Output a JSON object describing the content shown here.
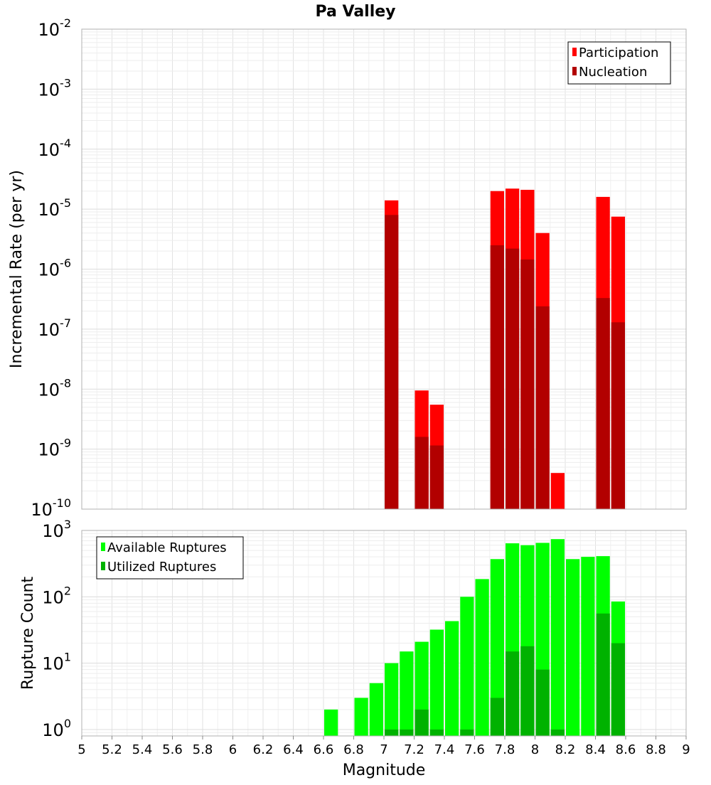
{
  "title": "Pa Valley",
  "xlabel": "Magnitude",
  "x_ticks": [
    "5",
    "5.2",
    "5.4",
    "5.6",
    "5.8",
    "6",
    "6.2",
    "6.4",
    "6.6",
    "6.8",
    "7",
    "7.2",
    "7.4",
    "7.6",
    "7.8",
    "8",
    "8.2",
    "8.4",
    "8.6",
    "8.8",
    "9"
  ],
  "chart_data": [
    {
      "type": "bar",
      "ylabel": "Incremental Rate (per yr)",
      "yscale": "log",
      "ylim": [
        1e-10,
        0.01
      ],
      "xlim": [
        5,
        9
      ],
      "y_ticks": [
        {
          "base": "10",
          "exp": "-10"
        },
        {
          "base": "10",
          "exp": "-9"
        },
        {
          "base": "10",
          "exp": "-8"
        },
        {
          "base": "10",
          "exp": "-7"
        },
        {
          "base": "10",
          "exp": "-6"
        },
        {
          "base": "10",
          "exp": "-5"
        },
        {
          "base": "10",
          "exp": "-4"
        },
        {
          "base": "10",
          "exp": "-3"
        },
        {
          "base": "10",
          "exp": "-2"
        }
      ],
      "legend_position": "top-right",
      "x": [
        7.05,
        7.25,
        7.35,
        7.75,
        7.85,
        7.95,
        8.05,
        8.15,
        8.45,
        8.55
      ],
      "series": [
        {
          "name": "Participation",
          "color": "#ff0000",
          "values": [
            1.4e-05,
            9.5e-09,
            5.5e-09,
            2e-05,
            2.2e-05,
            2.1e-05,
            4e-06,
            4e-10,
            1.6e-05,
            7.5e-06
          ]
        },
        {
          "name": "Nucleation",
          "color": "#b20000",
          "values": [
            8e-06,
            1.6e-09,
            1.15e-09,
            2.5e-06,
            2.2e-06,
            1.45e-06,
            2.4e-07,
            null,
            3.3e-07,
            1.3e-07
          ]
        }
      ]
    },
    {
      "type": "bar",
      "ylabel": "Rupture Count",
      "yscale": "log",
      "ylim": [
        0.8,
        1000
      ],
      "xlim": [
        5,
        9
      ],
      "y_ticks": [
        {
          "base": "10",
          "exp": "0",
          "value": 1
        },
        {
          "base": "10",
          "exp": "1",
          "value": 10
        },
        {
          "base": "10",
          "exp": "2",
          "value": 100
        },
        {
          "base": "10",
          "exp": "3",
          "value": 1000
        }
      ],
      "legend_position": "top-left",
      "x": [
        6.65,
        6.85,
        6.95,
        7.05,
        7.15,
        7.25,
        7.35,
        7.45,
        7.55,
        7.65,
        7.75,
        7.85,
        7.95,
        8.05,
        8.15,
        8.25,
        8.35,
        8.45,
        8.55
      ],
      "series": [
        {
          "name": "Available Ruptures",
          "color": "#00ff00",
          "values": [
            2,
            3,
            5,
            10,
            15,
            21,
            32,
            43,
            100,
            185,
            370,
            640,
            600,
            650,
            740,
            370,
            400,
            410,
            85
          ]
        },
        {
          "name": "Utilized Ruptures",
          "color": "#00b200",
          "values": [
            null,
            null,
            null,
            1,
            1,
            2,
            1,
            null,
            1,
            null,
            3,
            15,
            18,
            8,
            1,
            null,
            null,
            56,
            20
          ]
        }
      ]
    }
  ]
}
